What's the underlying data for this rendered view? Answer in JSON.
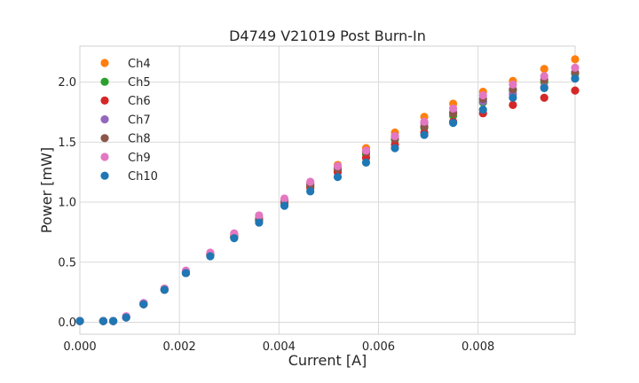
{
  "chart_data": {
    "type": "scatter",
    "title": "D4749 V21019 Post Burn-In",
    "xlabel": "Current [A]",
    "ylabel": "Power [mW]",
    "xlim": [
      0.0,
      0.00995
    ],
    "ylim": [
      -0.1,
      2.3
    ],
    "xticks": [
      0.0,
      0.002,
      0.004,
      0.006,
      0.008
    ],
    "xtick_labels": [
      "0.000",
      "0.002",
      "0.004",
      "0.006",
      "0.008"
    ],
    "yticks": [
      0.0,
      0.5,
      1.0,
      1.5,
      2.0
    ],
    "ytick_labels": [
      "0.0",
      "0.5",
      "1.0",
      "1.5",
      "2.0"
    ],
    "grid": true,
    "legend_position": "top-left",
    "x": [
      0.0,
      0.00047,
      0.00067,
      0.00093,
      0.00128,
      0.0017,
      0.00213,
      0.00262,
      0.0031,
      0.0036,
      0.00411,
      0.00463,
      0.00518,
      0.00575,
      0.00633,
      0.00692,
      0.0075,
      0.0081,
      0.0087,
      0.00933,
      0.00995
    ],
    "series": [
      {
        "name": "Ch4",
        "color": "#ff7f0e",
        "values": [
          0.01,
          0.01,
          0.01,
          0.04,
          0.15,
          0.28,
          0.42,
          0.57,
          0.73,
          0.87,
          1.02,
          1.16,
          1.31,
          1.45,
          1.58,
          1.71,
          1.82,
          1.92,
          2.01,
          2.11,
          2.19
        ]
      },
      {
        "name": "Ch5",
        "color": "#2ca02c",
        "values": [
          0.01,
          0.01,
          0.01,
          0.04,
          0.15,
          0.27,
          0.41,
          0.56,
          0.71,
          0.85,
          0.99,
          1.13,
          1.27,
          1.4,
          1.52,
          1.62,
          1.72,
          1.83,
          1.93,
          2.0,
          2.07
        ]
      },
      {
        "name": "Ch6",
        "color": "#d62728",
        "values": [
          0.01,
          0.01,
          0.01,
          0.04,
          0.15,
          0.27,
          0.41,
          0.56,
          0.71,
          0.85,
          0.99,
          1.12,
          1.25,
          1.37,
          1.48,
          1.58,
          1.67,
          1.74,
          1.81,
          1.87,
          1.93
        ]
      },
      {
        "name": "Ch7",
        "color": "#9467bd",
        "values": [
          0.01,
          0.01,
          0.01,
          0.04,
          0.16,
          0.28,
          0.42,
          0.57,
          0.72,
          0.86,
          1.01,
          1.15,
          1.29,
          1.42,
          1.55,
          1.66,
          1.75,
          1.84,
          1.9,
          1.96,
          2.03
        ]
      },
      {
        "name": "Ch8",
        "color": "#8c564b",
        "values": [
          0.01,
          0.01,
          0.01,
          0.04,
          0.15,
          0.27,
          0.41,
          0.56,
          0.71,
          0.85,
          1.0,
          1.14,
          1.28,
          1.42,
          1.53,
          1.63,
          1.74,
          1.86,
          1.94,
          2.02,
          2.08
        ]
      },
      {
        "name": "Ch9",
        "color": "#e377c2",
        "values": [
          0.01,
          0.01,
          0.01,
          0.05,
          0.16,
          0.28,
          0.43,
          0.58,
          0.74,
          0.89,
          1.03,
          1.17,
          1.3,
          1.43,
          1.55,
          1.67,
          1.78,
          1.89,
          1.98,
          2.05,
          2.12
        ]
      },
      {
        "name": "Ch10",
        "color": "#1f77b4",
        "values": [
          0.01,
          0.01,
          0.01,
          0.04,
          0.15,
          0.27,
          0.41,
          0.55,
          0.7,
          0.83,
          0.97,
          1.09,
          1.21,
          1.33,
          1.45,
          1.56,
          1.66,
          1.77,
          1.87,
          1.95,
          2.03
        ]
      }
    ]
  }
}
